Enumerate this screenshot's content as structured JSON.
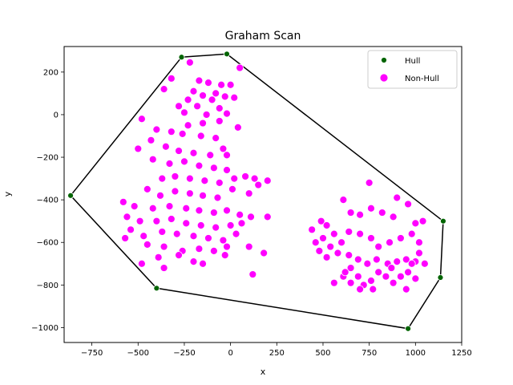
{
  "chart_data": {
    "type": "scatter",
    "title": "Graham Scan",
    "xlabel": "x",
    "ylabel": "y",
    "xlim": [
      -900,
      1250
    ],
    "ylim": [
      -1070,
      320
    ],
    "x_ticks": [
      -750,
      -500,
      -250,
      0,
      250,
      500,
      750,
      1000,
      1250
    ],
    "y_ticks": [
      -1000,
      -800,
      -600,
      -400,
      -200,
      0,
      200
    ],
    "grid": false,
    "legend_position": "top-right",
    "series": [
      {
        "name": "Hull",
        "color": "#006400",
        "points": [
          [
            -265,
            270
          ],
          [
            -20,
            285
          ],
          [
            1150,
            -500
          ],
          [
            1135,
            -765
          ],
          [
            960,
            -1005
          ],
          [
            -400,
            -815
          ],
          [
            -865,
            -380
          ]
        ]
      },
      {
        "name": "Non-Hull",
        "color": "#ff00ff",
        "points": [
          [
            -220,
            245
          ],
          [
            50,
            220
          ],
          [
            -320,
            170
          ],
          [
            -170,
            160
          ],
          [
            -120,
            150
          ],
          [
            -50,
            140
          ],
          [
            0,
            140
          ],
          [
            -360,
            120
          ],
          [
            -200,
            110
          ],
          [
            -80,
            100
          ],
          [
            -150,
            90
          ],
          [
            -30,
            85
          ],
          [
            -230,
            70
          ],
          [
            -100,
            70
          ],
          [
            20,
            80
          ],
          [
            -280,
            40
          ],
          [
            -180,
            40
          ],
          [
            -60,
            30
          ],
          [
            -250,
            10
          ],
          [
            -130,
            0
          ],
          [
            -20,
            5
          ],
          [
            -60,
            -30
          ],
          [
            -230,
            -50
          ],
          [
            -150,
            -40
          ],
          [
            -480,
            -20
          ],
          [
            -400,
            -70
          ],
          [
            -320,
            -80
          ],
          [
            -260,
            -90
          ],
          [
            -160,
            -100
          ],
          [
            -80,
            -110
          ],
          [
            -40,
            -160
          ],
          [
            40,
            -60
          ],
          [
            -430,
            -120
          ],
          [
            -350,
            -150
          ],
          [
            -280,
            -170
          ],
          [
            -200,
            -180
          ],
          [
            -110,
            -190
          ],
          [
            -20,
            -190
          ],
          [
            -500,
            -160
          ],
          [
            -420,
            -210
          ],
          [
            -330,
            -230
          ],
          [
            -250,
            -220
          ],
          [
            -170,
            -240
          ],
          [
            -90,
            -250
          ],
          [
            -20,
            -260
          ],
          [
            -370,
            -300
          ],
          [
            -300,
            -290
          ],
          [
            -220,
            -300
          ],
          [
            -140,
            -310
          ],
          [
            -60,
            -320
          ],
          [
            20,
            -300
          ],
          [
            80,
            -290
          ],
          [
            130,
            -300
          ],
          [
            150,
            -330
          ],
          [
            200,
            -310
          ],
          [
            -450,
            -350
          ],
          [
            -380,
            -380
          ],
          [
            -300,
            -360
          ],
          [
            -220,
            -370
          ],
          [
            -150,
            -380
          ],
          [
            -70,
            -390
          ],
          [
            10,
            -350
          ],
          [
            100,
            -370
          ],
          [
            -580,
            -410
          ],
          [
            -520,
            -430
          ],
          [
            -420,
            -440
          ],
          [
            -330,
            -430
          ],
          [
            -240,
            -440
          ],
          [
            -170,
            -450
          ],
          [
            -90,
            -460
          ],
          [
            -20,
            -450
          ],
          [
            50,
            -470
          ],
          [
            110,
            -480
          ],
          [
            200,
            -480
          ],
          [
            -560,
            -480
          ],
          [
            -490,
            -500
          ],
          [
            -400,
            -500
          ],
          [
            -320,
            -490
          ],
          [
            -240,
            -510
          ],
          [
            -160,
            -520
          ],
          [
            -80,
            -530
          ],
          [
            0,
            -520
          ],
          [
            60,
            -510
          ],
          [
            -540,
            -540
          ],
          [
            -470,
            -570
          ],
          [
            -370,
            -550
          ],
          [
            -290,
            -560
          ],
          [
            -200,
            -570
          ],
          [
            -120,
            -580
          ],
          [
            -40,
            -590
          ],
          [
            30,
            -560
          ],
          [
            -570,
            -580
          ],
          [
            -450,
            -610
          ],
          [
            -360,
            -620
          ],
          [
            -260,
            -640
          ],
          [
            -170,
            -630
          ],
          [
            -90,
            -640
          ],
          [
            -20,
            -620
          ],
          [
            100,
            -620
          ],
          [
            180,
            -650
          ],
          [
            -480,
            -700
          ],
          [
            -390,
            -670
          ],
          [
            -360,
            -720
          ],
          [
            -200,
            -690
          ],
          [
            -150,
            -700
          ],
          [
            120,
            -750
          ],
          [
            -280,
            -660
          ],
          [
            -30,
            -660
          ],
          [
            440,
            -540
          ],
          [
            490,
            -500
          ],
          [
            520,
            -520
          ],
          [
            560,
            -560
          ],
          [
            610,
            -400
          ],
          [
            650,
            -460
          ],
          [
            700,
            -470
          ],
          [
            750,
            -320
          ],
          [
            760,
            -440
          ],
          [
            820,
            -460
          ],
          [
            880,
            -480
          ],
          [
            900,
            -390
          ],
          [
            960,
            -420
          ],
          [
            1000,
            -510
          ],
          [
            1040,
            -500
          ],
          [
            460,
            -600
          ],
          [
            500,
            -580
          ],
          [
            540,
            -620
          ],
          [
            600,
            -600
          ],
          [
            640,
            -550
          ],
          [
            700,
            -560
          ],
          [
            760,
            -580
          ],
          [
            800,
            -620
          ],
          [
            860,
            -600
          ],
          [
            920,
            -580
          ],
          [
            980,
            -560
          ],
          [
            1020,
            -600
          ],
          [
            480,
            -640
          ],
          [
            520,
            -670
          ],
          [
            580,
            -650
          ],
          [
            640,
            -660
          ],
          [
            690,
            -680
          ],
          [
            740,
            -700
          ],
          [
            790,
            -680
          ],
          [
            850,
            -700
          ],
          [
            900,
            -690
          ],
          [
            950,
            -680
          ],
          [
            1000,
            -690
          ],
          [
            1020,
            -650
          ],
          [
            560,
            -790
          ],
          [
            610,
            -760
          ],
          [
            650,
            -790
          ],
          [
            690,
            -760
          ],
          [
            720,
            -800
          ],
          [
            760,
            -780
          ],
          [
            800,
            -740
          ],
          [
            840,
            -760
          ],
          [
            880,
            -790
          ],
          [
            920,
            -760
          ],
          [
            960,
            -740
          ],
          [
            1000,
            -770
          ],
          [
            650,
            -720
          ],
          [
            700,
            -820
          ],
          [
            770,
            -820
          ],
          [
            950,
            -820
          ],
          [
            620,
            -740
          ],
          [
            870,
            -720
          ],
          [
            980,
            -700
          ],
          [
            1050,
            -700
          ]
        ]
      }
    ]
  }
}
